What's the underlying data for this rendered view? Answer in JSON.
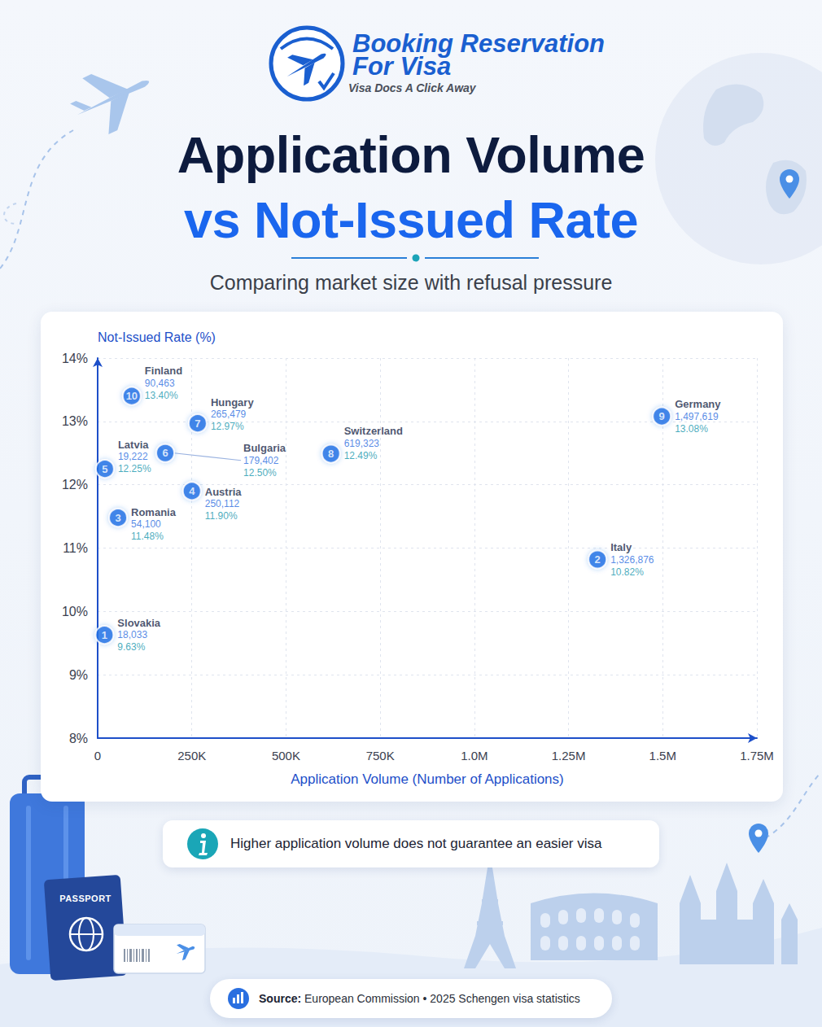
{
  "header": {
    "brand_lines": [
      "Booking Reservation",
      "For Visa"
    ],
    "tagline": "Visa Docs A Click Away"
  },
  "chart_data": {
    "type": "scatter",
    "title": [
      "Application Volume",
      "vs Not-Issued Rate"
    ],
    "subtitle": "Comparing market size with refusal pressure",
    "x_label": "Application Volume (Number of Applications)",
    "y_label": "Not-Issued Rate (%)",
    "point_labels": [
      "Slovakia",
      "Italy",
      "Romania",
      "Austria",
      "Latvia",
      "Bulgaria",
      "Hungary",
      "Switzerland",
      "Germany",
      "Finland"
    ],
    "ranks": [
      1,
      2,
      3,
      4,
      5,
      6,
      7,
      8,
      9,
      10
    ],
    "x": [
      18033,
      1326876,
      54100,
      250112,
      19222,
      179402,
      265479,
      619323,
      1497619,
      90463
    ],
    "x_labels": [
      "18,033",
      "1,326,876",
      "54,100",
      "250,112",
      "19,222",
      "179,402",
      "265,479",
      "619,323",
      "1,497,619",
      "90,463"
    ],
    "values": [
      9.63,
      10.82,
      11.48,
      11.9,
      12.25,
      12.5,
      12.97,
      12.49,
      13.08,
      13.4
    ],
    "value_labels": [
      "9.63%",
      "10.82%",
      "11.48%",
      "11.90%",
      "12.25%",
      "12.50%",
      "12.97%",
      "12.49%",
      "13.08%",
      "13.40%"
    ],
    "xlim": [
      0,
      1750000
    ],
    "xticks": [
      0,
      {
        "value": 250000,
        "label": "250K"
      },
      {
        "value": 500000,
        "label": "500K"
      },
      {
        "value": 750000,
        "label": "750K"
      },
      {
        "value": 1000000,
        "label": "1.0M"
      },
      {
        "value": 1250000,
        "label": "1.25M"
      },
      {
        "value": 1500000,
        "label": "1.5M"
      },
      {
        "value": 1750000,
        "label": "1.75M"
      }
    ],
    "ylim": [
      8,
      14
    ],
    "yticks": [
      {
        "value": 8,
        "label": "8%"
      },
      {
        "value": 9,
        "label": "9%"
      },
      {
        "value": 10,
        "label": "10%"
      },
      {
        "value": 11,
        "label": "11%"
      },
      {
        "value": 12,
        "label": "12%"
      },
      {
        "value": 13,
        "label": "13%"
      },
      {
        "value": 14,
        "label": "14%"
      }
    ],
    "grid": true,
    "data_labels": true,
    "marker": "circle",
    "color": "#1f6fe5",
    "annotations": [
      "Higher application volume does not guarantee an easier visa"
    ]
  },
  "footer": {
    "source_label": "Source:",
    "source": "European Commission • 2025 Schengen visa statistics"
  },
  "decorations": {
    "passport_label": "PASSPORT"
  }
}
